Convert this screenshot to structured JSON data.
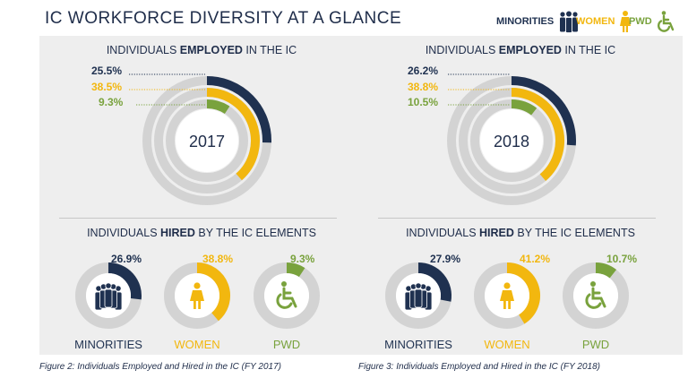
{
  "title": "IC WORKFORCE DIVERSITY AT A GLANCE",
  "legend": [
    {
      "label": "MINORITIES",
      "color": "#1f3150",
      "icon": "people-icon"
    },
    {
      "label": "WOMEN",
      "color": "#f2b70f",
      "icon": "woman-icon"
    },
    {
      "label": "PWD",
      "color": "#79a23d",
      "icon": "wheelchair-icon"
    }
  ],
  "colors": {
    "minorities": "#1f3150",
    "women": "#f2b70f",
    "pwd": "#79a23d",
    "track": "#d3d3d3"
  },
  "employed_title": {
    "pre": "INDIVIDUALS ",
    "bold": "EMPLOYED",
    "post": " IN THE IC"
  },
  "hired_title": {
    "pre": "INDIVIDUALS ",
    "bold": "HIRED",
    "post": " BY THE IC ELEMENTS"
  },
  "panels": [
    {
      "year": "2017",
      "employed_labels": [
        "25.5%",
        "38.5%",
        "9.3%"
      ],
      "hired_labels": [
        "26.9%",
        "38.8%",
        "9.3%"
      ],
      "hired_names": [
        "MINORITIES",
        "WOMEN",
        "PWD"
      ],
      "caption": "Figure 2: Individuals Employed and Hired in the IC (FY 2017)"
    },
    {
      "year": "2018",
      "employed_labels": [
        "26.2%",
        "38.8%",
        "10.5%"
      ],
      "hired_labels": [
        "27.9%",
        "41.2%",
        "10.7%"
      ],
      "hired_names": [
        "MINORITIES",
        "WOMEN",
        "PWD"
      ],
      "caption": "Figure 3: Individuals Employed and Hired in the IC (FY 2018)"
    }
  ],
  "chart_data": [
    {
      "type": "pie",
      "title": "INDIVIDUALS EMPLOYED IN THE IC",
      "year": "2017",
      "categories": [
        "Minorities",
        "Women",
        "PWD"
      ],
      "values": [
        25.5,
        38.5,
        9.3
      ],
      "unit": "%"
    },
    {
      "type": "pie",
      "title": "INDIVIDUALS HIRED BY THE IC ELEMENTS",
      "year": "2017",
      "categories": [
        "MINORITIES",
        "WOMEN",
        "PWD"
      ],
      "values": [
        26.9,
        38.8,
        9.3
      ],
      "unit": "%"
    },
    {
      "type": "pie",
      "title": "INDIVIDUALS EMPLOYED IN THE IC",
      "year": "2018",
      "categories": [
        "Minorities",
        "Women",
        "PWD"
      ],
      "values": [
        26.2,
        38.8,
        10.5
      ],
      "unit": "%"
    },
    {
      "type": "pie",
      "title": "INDIVIDUALS HIRED BY THE IC ELEMENTS",
      "year": "2018",
      "categories": [
        "MINORITIES",
        "WOMEN",
        "PWD"
      ],
      "values": [
        27.9,
        41.2,
        10.7
      ],
      "unit": "%"
    }
  ]
}
